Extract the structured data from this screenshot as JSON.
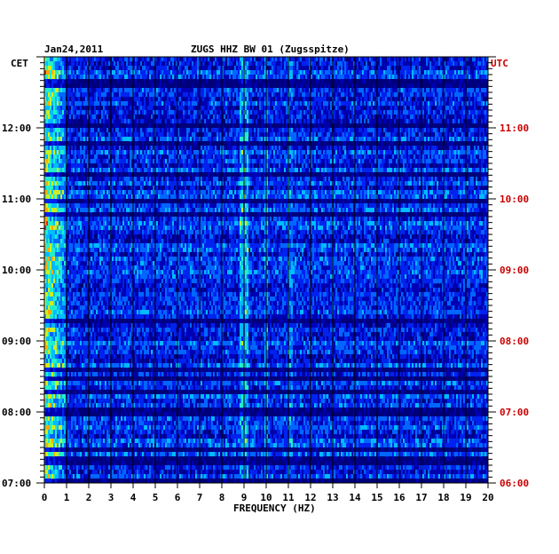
{
  "chart_data": {
    "type": "heatmap",
    "date": "Jan24,2011",
    "title": "ZUGS HHZ BW 01 (Zugsspitze)",
    "left_axis_label": "CET",
    "right_axis_label": "UTC",
    "xlabel": "FREQUENCY (HZ)",
    "xlim": [
      0,
      20
    ],
    "x_ticks": [
      "0",
      "1",
      "2",
      "3",
      "4",
      "5",
      "6",
      "7",
      "8",
      "9",
      "10",
      "11",
      "12",
      "13",
      "14",
      "15",
      "16",
      "17",
      "18",
      "19",
      "20"
    ],
    "left_ticks": [
      {
        "label": "12:00",
        "hour": 12
      },
      {
        "label": "11:00",
        "hour": 11
      },
      {
        "label": "10:00",
        "hour": 10
      },
      {
        "label": "09:00",
        "hour": 9
      },
      {
        "label": "08:00",
        "hour": 8
      },
      {
        "label": "07:00",
        "hour": 7
      }
    ],
    "right_ticks": [
      {
        "label": "11:00",
        "hour": 11
      },
      {
        "label": "10:00",
        "hour": 10
      },
      {
        "label": "09:00",
        "hour": 9
      },
      {
        "label": "08:00",
        "hour": 8
      },
      {
        "label": "07:00",
        "hour": 7
      },
      {
        "label": "06:00",
        "hour": 6
      }
    ],
    "time_range_cet": [
      7,
      13
    ],
    "grid": true,
    "rows": 96,
    "colormap": [
      "#00007a",
      "#0000b8",
      "#0022ee",
      "#0066ff",
      "#00bbff",
      "#22eecc",
      "#ccee22",
      "#ffaa00",
      "#ee2200"
    ],
    "colors": {
      "background": "#0000a8",
      "left_text": "#000000",
      "right_text": "#cc0000"
    }
  }
}
